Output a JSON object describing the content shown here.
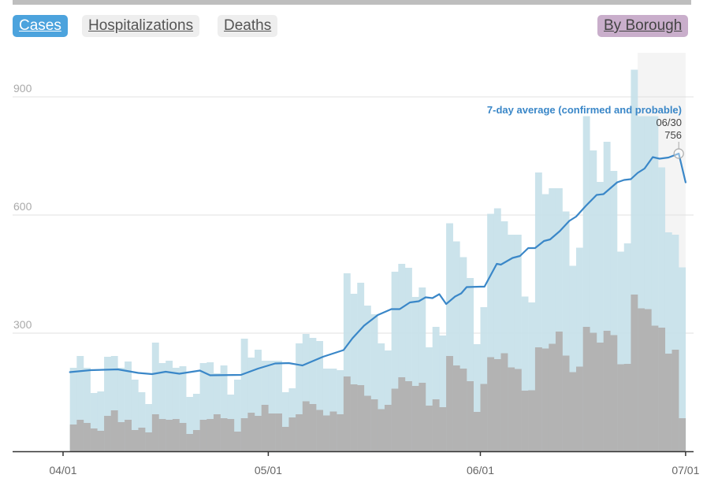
{
  "buttons": {
    "cases": "Cases",
    "hospitalizations": "Hospitalizations",
    "deaths": "Deaths",
    "by_borough": "By Borough"
  },
  "colors": {
    "active_tab": "#4ca3dd",
    "inactive_tab": "#eeeeee",
    "borough_tab": "#c9aecb",
    "bar_light": "#c8e1ea",
    "bar_dark": "#b3b3b3",
    "avg_line": "#3a87c8",
    "shade": "#f4f4f4"
  },
  "chart_data": {
    "type": "bar",
    "title": "",
    "xlabel": "",
    "ylabel": "",
    "ylim": [
      0,
      1000
    ],
    "grid": true,
    "yticks": [
      {
        "value": 300,
        "label": "300"
      },
      {
        "value": 600,
        "label": "600"
      },
      {
        "value": 900,
        "label": "900"
      }
    ],
    "xticks": [
      {
        "day": 0,
        "label": "04/01"
      },
      {
        "day": 30,
        "label": "05/01"
      },
      {
        "day": 61,
        "label": "06/01"
      },
      {
        "day": 91,
        "label": "07/01"
      }
    ],
    "day_origin": "04/01",
    "first_bar_day": 1,
    "bars_total": [
      212,
      242,
      212,
      148,
      152,
      240,
      242,
      212,
      228,
      182,
      150,
      120,
      276,
      224,
      230,
      212,
      216,
      138,
      146,
      224,
      226,
      198,
      218,
      144,
      182,
      286,
      238,
      258,
      230,
      230,
      230,
      150,
      160,
      274,
      298,
      288,
      280,
      210,
      210,
      206,
      452,
      400,
      428,
      370,
      348,
      274,
      256,
      456,
      476,
      466,
      392,
      416,
      264,
      316,
      294,
      579,
      533,
      493,
      440,
      272,
      366,
      603,
      617,
      584,
      550,
      550,
      393,
      378,
      708,
      653,
      668,
      668,
      609,
      471,
      517,
      851,
      764,
      684,
      786,
      712,
      507,
      528,
      969,
      851,
      851,
      851,
      721,
      556,
      550,
      467
    ],
    "bars_overlay": [
      68,
      80,
      72,
      58,
      52,
      90,
      104,
      74,
      80,
      54,
      60,
      48,
      94,
      82,
      80,
      82,
      72,
      44,
      54,
      80,
      82,
      94,
      84,
      82,
      50,
      84,
      98,
      90,
      118,
      96,
      96,
      62,
      86,
      94,
      127,
      120,
      105,
      91,
      101,
      94,
      190,
      170,
      168,
      141,
      132,
      107,
      118,
      159,
      188,
      178,
      166,
      174,
      116,
      132,
      112,
      242,
      218,
      210,
      178,
      100,
      171,
      239,
      234,
      249,
      213,
      209,
      154,
      155,
      264,
      261,
      273,
      304,
      243,
      201,
      215,
      316,
      301,
      276,
      306,
      295,
      221,
      222,
      398,
      363,
      361,
      319,
      314,
      248,
      258,
      84
    ],
    "avg_series": [
      [
        1,
        201
      ],
      [
        4,
        206
      ],
      [
        8,
        208
      ],
      [
        11,
        199
      ],
      [
        13,
        196
      ],
      [
        15,
        202
      ],
      [
        17,
        197
      ],
      [
        20,
        205
      ],
      [
        21.5,
        193
      ],
      [
        26,
        194
      ],
      [
        28.5,
        210
      ],
      [
        31,
        223
      ],
      [
        33,
        224
      ],
      [
        35,
        218
      ],
      [
        38,
        240
      ],
      [
        41,
        257
      ],
      [
        42.3,
        287
      ],
      [
        44,
        319
      ],
      [
        46,
        346
      ],
      [
        48,
        361
      ],
      [
        49.2,
        361
      ],
      [
        50.7,
        378
      ],
      [
        52,
        381
      ],
      [
        53,
        391
      ],
      [
        54,
        389
      ],
      [
        55,
        399
      ],
      [
        56,
        374
      ],
      [
        57.3,
        393
      ],
      [
        58.2,
        401
      ],
      [
        59,
        417
      ],
      [
        61,
        418
      ],
      [
        61.6,
        418
      ],
      [
        63.4,
        476
      ],
      [
        64,
        474
      ],
      [
        65.7,
        491
      ],
      [
        66.8,
        496
      ],
      [
        68,
        516
      ],
      [
        69,
        516
      ],
      [
        70.3,
        534
      ],
      [
        71.2,
        538
      ],
      [
        72.6,
        559
      ],
      [
        74,
        585
      ],
      [
        75,
        596
      ],
      [
        76.4,
        623
      ],
      [
        78,
        651
      ],
      [
        79,
        653
      ],
      [
        81,
        683
      ],
      [
        82,
        689
      ],
      [
        83,
        691
      ],
      [
        84,
        707
      ],
      [
        85,
        718
      ],
      [
        86.2,
        747
      ],
      [
        87.2,
        743
      ],
      [
        88.5,
        746
      ],
      [
        90,
        756
      ],
      [
        91,
        683
      ]
    ],
    "shaded_days": [
      84,
      91
    ],
    "annotation": {
      "label": "7-day average (confirmed and probable)",
      "date": "06/30",
      "value": "756",
      "day": 90,
      "y": 756
    }
  }
}
